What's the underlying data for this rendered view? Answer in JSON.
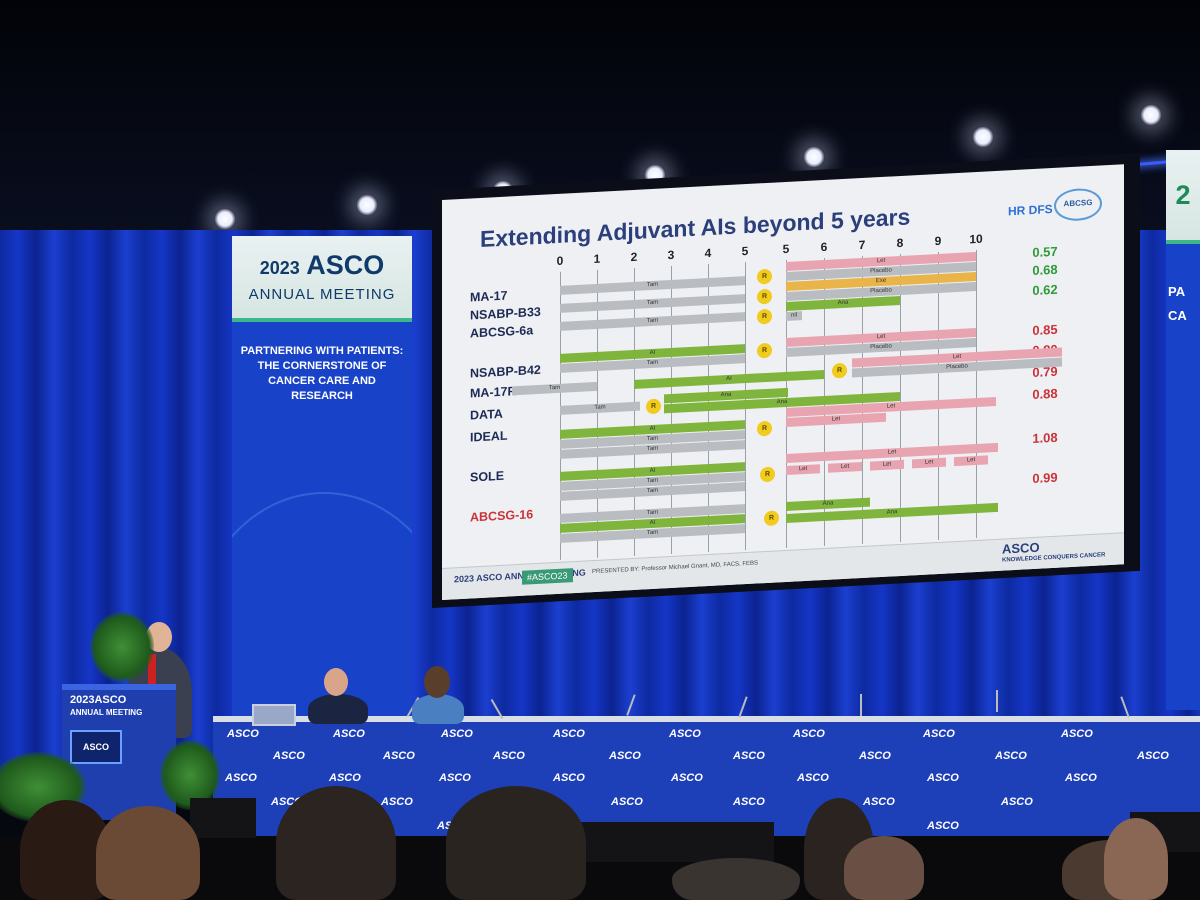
{
  "banner_left": {
    "year": "2023",
    "brand": "ASCO",
    "meeting": "ANNUAL MEETING",
    "tagline": "PARTNERING WITH PATIENTS: THE CORNERSTONE OF CANCER CARE AND RESEARCH"
  },
  "banner_right": {
    "year": "2",
    "line1": "PA",
    "line2": "CA"
  },
  "slide": {
    "title": "Extending Adjuvant AIs beyond 5 years",
    "hr_label": "HR DFS",
    "org_logo": "ABCSG",
    "year_ticks": [
      "0",
      "1",
      "2",
      "3",
      "4",
      "5",
      "5",
      "6",
      "7",
      "8",
      "9",
      "10"
    ],
    "trials": [
      {
        "name": "MA-17",
        "highlight": false
      },
      {
        "name": "NSABP-B33",
        "highlight": false
      },
      {
        "name": "ABCSG-6a",
        "highlight": false
      },
      {
        "name": "NSABP-B42",
        "highlight": false
      },
      {
        "name": "MA-17R",
        "highlight": false
      },
      {
        "name": "DATA",
        "highlight": false
      },
      {
        "name": "IDEAL",
        "highlight": false
      },
      {
        "name": "SOLE",
        "highlight": false
      },
      {
        "name": "ABCSG-16",
        "highlight": true
      }
    ],
    "hr_values": [
      {
        "value": "0.57",
        "color": "#2e9a3a"
      },
      {
        "value": "0.68",
        "color": "#2e9a3a"
      },
      {
        "value": "0.62",
        "color": "#2e9a3a"
      },
      {
        "value": "0.85",
        "color": "#c9343a"
      },
      {
        "value": "0.80",
        "color": "#c9343a"
      },
      {
        "value": "0.79",
        "color": "#c9343a"
      },
      {
        "value": "0.88",
        "color": "#c9343a"
      },
      {
        "value": "1.08",
        "color": "#c9343a"
      },
      {
        "value": "0.99",
        "color": "#c9343a"
      }
    ],
    "bar_labels": {
      "tam": "Tam",
      "ai": "AI",
      "let": "Let",
      "placebo": "Placebo",
      "exe": "Exe",
      "ana": "Ana",
      "nil": "nil",
      "r": "R"
    },
    "footer": {
      "meeting": "2023 ASCO ANNUAL MEETING",
      "hashtag": "#ASCO23",
      "presenter": "PRESENTED BY: Professor Michael Gnant, MD, FACS, FEBS",
      "brand": "ASCO",
      "tagline": "KNOWLEDGE CONQUERS CANCER"
    }
  },
  "podium": {
    "year": "2023",
    "brand": "ASCO",
    "meeting": "ANNUAL MEETING",
    "screen_brand": "ASCO"
  },
  "dais": {
    "logo_text": "ASCO"
  }
}
